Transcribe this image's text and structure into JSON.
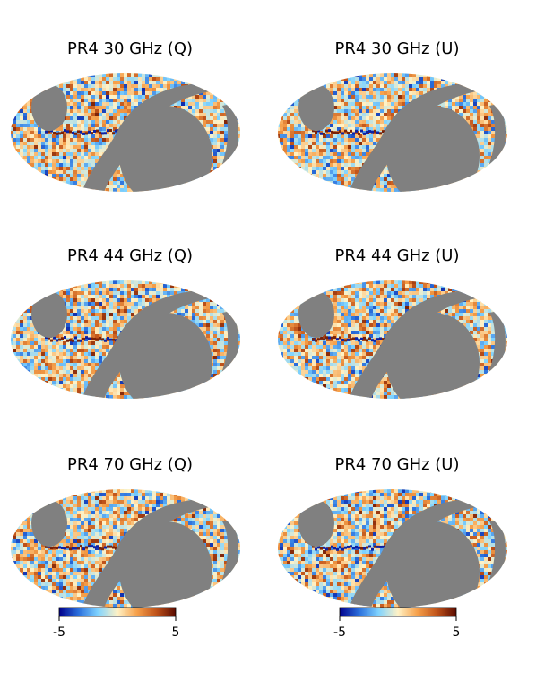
{
  "panels": [
    {
      "title": "PR4 30 GHz (Q)",
      "seed": 11
    },
    {
      "title": "PR4 30 GHz (U)",
      "seed": 23
    },
    {
      "title": "PR4 44 GHz (Q)",
      "seed": 37
    },
    {
      "title": "PR4 44 GHz (U)",
      "seed": 41
    },
    {
      "title": "PR4 70 GHz (Q)",
      "seed": 53
    },
    {
      "title": "PR4 70 GHz (U)",
      "seed": 67
    }
  ],
  "colorbar": {
    "min_label": "-5",
    "max_label": "5",
    "colors": [
      "#00008b",
      "#2a6fdc",
      "#7fd3ff",
      "#fff2c6",
      "#f6a04a",
      "#c0531a",
      "#5a0b00"
    ]
  },
  "mask_color": "#808080"
}
